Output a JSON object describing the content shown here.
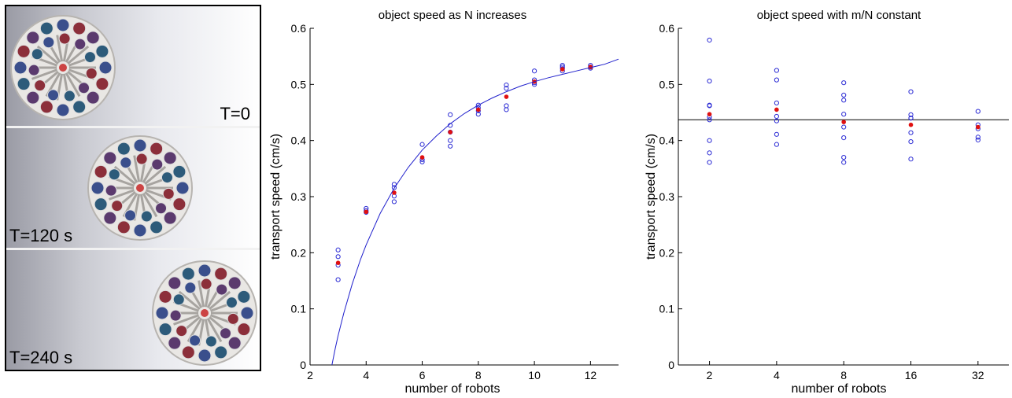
{
  "photo_panel": {
    "frames": [
      {
        "label": "T=0"
      },
      {
        "label": "T=120 s"
      },
      {
        "label": "T=240 s"
      }
    ]
  },
  "chart_data": [
    {
      "type": "scatter",
      "title": "object speed as N increases",
      "xlabel": "number of robots",
      "ylabel": "transport speed (cm/s)",
      "xlim": [
        2,
        13
      ],
      "ylim": [
        0,
        0.6
      ],
      "xticks": [
        2,
        4,
        6,
        8,
        10,
        12
      ],
      "yticks": [
        0,
        0.1,
        0.2,
        0.3,
        0.4,
        0.5,
        0.6
      ],
      "xtick_labels": [
        "2",
        "4",
        "6",
        "8",
        "10",
        "12"
      ],
      "ytick_labels": [
        "0",
        "0.1",
        "0.2",
        "0.3",
        "0.4",
        "0.5",
        "0.6"
      ],
      "grid": false,
      "series": [
        {
          "kind": "trials",
          "marker": "open-circle",
          "color": "#2b2bd4",
          "x": [
            3,
            3,
            3,
            3,
            4,
            4,
            4,
            5,
            5,
            5,
            5,
            6,
            6,
            6,
            7,
            7,
            7,
            7,
            7,
            8,
            8,
            8,
            8,
            9,
            9,
            9,
            9,
            10,
            10,
            10,
            10,
            11,
            11,
            11,
            11,
            12,
            12,
            12
          ],
          "y": [
            0.205,
            0.193,
            0.178,
            0.152,
            0.279,
            0.275,
            0.272,
            0.322,
            0.316,
            0.301,
            0.291,
            0.393,
            0.366,
            0.362,
            0.446,
            0.427,
            0.415,
            0.4,
            0.39,
            0.463,
            0.458,
            0.453,
            0.447,
            0.499,
            0.493,
            0.462,
            0.455,
            0.524,
            0.508,
            0.503,
            0.5,
            0.534,
            0.531,
            0.528,
            0.524,
            0.534,
            0.531,
            0.529
          ]
        },
        {
          "kind": "mean",
          "marker": "filled-circle",
          "color": "#e01010",
          "x": [
            3,
            4,
            5,
            6,
            7,
            8,
            9,
            10,
            11,
            12
          ],
          "y": [
            0.182,
            0.273,
            0.307,
            0.37,
            0.415,
            0.455,
            0.478,
            0.505,
            0.527,
            0.531
          ]
        },
        {
          "kind": "fit",
          "marker": "line",
          "color": "#2020cc",
          "x": [
            2.78,
            2.9,
            3.0,
            3.2,
            3.5,
            3.8,
            4.0,
            4.5,
            5.0,
            5.5,
            6.0,
            6.5,
            7.0,
            7.5,
            8.0,
            8.5,
            9.0,
            9.5,
            10.0,
            10.5,
            11.0,
            11.5,
            12.0,
            12.5,
            13.0
          ],
          "y": [
            0.0,
            0.03,
            0.052,
            0.092,
            0.144,
            0.188,
            0.214,
            0.27,
            0.315,
            0.352,
            0.383,
            0.408,
            0.43,
            0.448,
            0.463,
            0.476,
            0.487,
            0.497,
            0.505,
            0.512,
            0.518,
            0.524,
            0.53,
            0.536,
            0.545
          ]
        }
      ]
    },
    {
      "type": "scatter",
      "title": "object speed with m/N constant",
      "xlabel": "number of robots",
      "ylabel": "transport speed (cm/s)",
      "x_scale": "log2",
      "xlim": [
        1.45,
        44
      ],
      "ylim": [
        0,
        0.6
      ],
      "xticks": [
        2,
        4,
        8,
        16,
        32
      ],
      "yticks": [
        0,
        0.1,
        0.2,
        0.3,
        0.4,
        0.5,
        0.6
      ],
      "xtick_labels": [
        "2",
        "4",
        "8",
        "16",
        "32"
      ],
      "ytick_labels": [
        "0",
        "0.1",
        "0.2",
        "0.3",
        "0.4",
        "0.5",
        "0.6"
      ],
      "grid": false,
      "reference_line": {
        "y": 0.437,
        "color": "#000000"
      },
      "series": [
        {
          "kind": "trials",
          "marker": "open-circle",
          "color": "#2b2bd4",
          "x": [
            2,
            2,
            2,
            2,
            2,
            2,
            2,
            2,
            2,
            4,
            4,
            4,
            4,
            4,
            4,
            4,
            8,
            8,
            8,
            8,
            8,
            8,
            8,
            8,
            16,
            16,
            16,
            16,
            16,
            16,
            16,
            32,
            32,
            32,
            32,
            32
          ],
          "y": [
            0.579,
            0.506,
            0.463,
            0.462,
            0.442,
            0.437,
            0.4,
            0.378,
            0.361,
            0.525,
            0.508,
            0.467,
            0.443,
            0.435,
            0.411,
            0.393,
            0.503,
            0.481,
            0.472,
            0.447,
            0.424,
            0.405,
            0.37,
            0.361,
            0.487,
            0.446,
            0.44,
            0.414,
            0.398,
            0.367,
            0.44,
            0.452,
            0.428,
            0.421,
            0.406,
            0.401
          ]
        },
        {
          "kind": "mean",
          "marker": "filled-circle",
          "color": "#e01010",
          "x": [
            2,
            4,
            8,
            16,
            32
          ],
          "y": [
            0.447,
            0.455,
            0.433,
            0.428,
            0.424
          ]
        }
      ]
    }
  ]
}
